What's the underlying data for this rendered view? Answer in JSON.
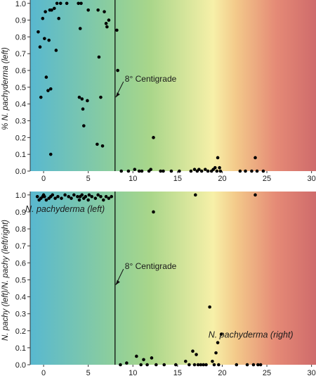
{
  "colors": {
    "gradient_stops": [
      "#58b8d0",
      "#8fcf9a",
      "#a9d68a",
      "#f7f0a8",
      "#f3c98a",
      "#e58a76",
      "#cf6b6b"
    ],
    "marker": "#000000",
    "threshold_line": "#000000"
  },
  "chart_data": [
    {
      "type": "scatter",
      "title": "",
      "xlabel": "",
      "ylabel": "% N. pachyderma (left)",
      "xlim": [
        -1.5,
        30.5
      ],
      "ylim": [
        0,
        1.02
      ],
      "xticks": [
        "0",
        "5",
        "10",
        "15",
        "20",
        "25",
        "30"
      ],
      "yticks": [
        "0.0",
        "0.1",
        "0.2",
        "0.3",
        "0.4",
        "0.5",
        "0.6",
        "0.7",
        "0.8",
        "0.9",
        "1.0"
      ],
      "grid": false,
      "threshold": {
        "x": 8,
        "label": "8° Centigrade",
        "label_x": 10.2,
        "label_y": 0.55,
        "arrow_to_y": 0.44
      },
      "points": [
        [
          -0.6,
          0.83
        ],
        [
          -0.4,
          0.74
        ],
        [
          -0.3,
          0.44
        ],
        [
          -0.1,
          0.91
        ],
        [
          0.1,
          0.79
        ],
        [
          0.2,
          0.95
        ],
        [
          0.3,
          0.56
        ],
        [
          0.5,
          0.48
        ],
        [
          0.6,
          0.78
        ],
        [
          0.7,
          0.96
        ],
        [
          0.8,
          0.1
        ],
        [
          0.8,
          0.49
        ],
        [
          0.9,
          0.96
        ],
        [
          1.2,
          0.97
        ],
        [
          1.4,
          0.72
        ],
        [
          1.5,
          1.0
        ],
        [
          1.7,
          0.91
        ],
        [
          1.9,
          1.0
        ],
        [
          2.6,
          1.0
        ],
        [
          3.9,
          1.0
        ],
        [
          4.0,
          0.44
        ],
        [
          4.1,
          0.85
        ],
        [
          4.2,
          1.0
        ],
        [
          4.3,
          0.43
        ],
        [
          4.4,
          0.37
        ],
        [
          4.5,
          0.27
        ],
        [
          4.9,
          0.42
        ],
        [
          5.0,
          0.96
        ],
        [
          6.0,
          0.16
        ],
        [
          6.1,
          0.96
        ],
        [
          6.2,
          0.68
        ],
        [
          6.4,
          0.44
        ],
        [
          6.6,
          0.15
        ],
        [
          6.8,
          0.95
        ],
        [
          7.0,
          0.88
        ],
        [
          7.1,
          0.86
        ],
        [
          7.3,
          0.9
        ],
        [
          8.2,
          0.84
        ],
        [
          8.3,
          0.6
        ],
        [
          8.7,
          0.0
        ],
        [
          9.5,
          0.0
        ],
        [
          10.2,
          0.01
        ],
        [
          10.7,
          0.0
        ],
        [
          11.0,
          0.0
        ],
        [
          11.8,
          0.0
        ],
        [
          12.0,
          0.01
        ],
        [
          12.3,
          0.2
        ],
        [
          13.1,
          0.0
        ],
        [
          13.4,
          0.0
        ],
        [
          14.3,
          0.0
        ],
        [
          15.2,
          0.0
        ],
        [
          16.5,
          0.0
        ],
        [
          16.9,
          0.01
        ],
        [
          17.2,
          0.0
        ],
        [
          17.4,
          0.01
        ],
        [
          17.7,
          0.0
        ],
        [
          18.1,
          0.01
        ],
        [
          18.4,
          0.0
        ],
        [
          18.8,
          0.0
        ],
        [
          19.0,
          0.01
        ],
        [
          19.2,
          0.02
        ],
        [
          19.4,
          0.0
        ],
        [
          19.5,
          0.08
        ],
        [
          19.7,
          0.02
        ],
        [
          19.8,
          0.0
        ],
        [
          22.0,
          0.0
        ],
        [
          22.6,
          0.0
        ],
        [
          23.3,
          0.0
        ],
        [
          23.7,
          0.08
        ],
        [
          23.9,
          0.0
        ],
        [
          24.6,
          0.0
        ]
      ]
    },
    {
      "type": "scatter",
      "title": "",
      "xlabel": "",
      "ylabel": "N. pachy (left)/N. pachy (left/right)",
      "xlim": [
        -1.5,
        30.5
      ],
      "ylim": [
        0,
        1.02
      ],
      "xticks": [
        "0",
        "5",
        "10",
        "15",
        "20",
        "25",
        "30"
      ],
      "yticks": [
        "0.0",
        "0.1",
        "0.2",
        "0.3",
        "0.4",
        "0.5",
        "0.6",
        "0.7",
        "0.8",
        "0.9",
        "1.0"
      ],
      "grid": false,
      "threshold": {
        "x": 8,
        "label": "8° Centigrade",
        "label_x": 10.2,
        "label_y": 0.58,
        "arrow_to_y": 0.47
      },
      "annotations": [
        {
          "text": "N. pachyderma (left)",
          "x": 2.4,
          "y": 0.9
        },
        {
          "text": "N. pachyderma (right)",
          "x": 23.2,
          "y": 0.16
        }
      ],
      "points": [
        [
          -0.7,
          0.99
        ],
        [
          -0.5,
          0.97
        ],
        [
          -0.3,
          0.98
        ],
        [
          -0.1,
          0.99
        ],
        [
          0.0,
          1.0
        ],
        [
          0.1,
          0.99
        ],
        [
          0.3,
          0.97
        ],
        [
          0.6,
          0.98
        ],
        [
          0.8,
          0.99
        ],
        [
          1.0,
          1.0
        ],
        [
          1.3,
          0.98
        ],
        [
          1.6,
          0.99
        ],
        [
          2.0,
          0.98
        ],
        [
          2.4,
          1.0
        ],
        [
          2.8,
          0.99
        ],
        [
          3.1,
          0.98
        ],
        [
          3.4,
          1.0
        ],
        [
          3.8,
          0.99
        ],
        [
          4.0,
          0.97
        ],
        [
          4.1,
          0.99
        ],
        [
          4.3,
          1.0
        ],
        [
          4.5,
          0.98
        ],
        [
          4.7,
          0.99
        ],
        [
          5.0,
          0.97
        ],
        [
          5.1,
          1.0
        ],
        [
          5.4,
          0.99
        ],
        [
          5.8,
          0.98
        ],
        [
          6.1,
          1.0
        ],
        [
          6.4,
          0.99
        ],
        [
          6.7,
          0.97
        ],
        [
          7.0,
          0.99
        ],
        [
          7.3,
          0.98
        ],
        [
          7.6,
          0.99
        ],
        [
          8.6,
          0.0
        ],
        [
          9.3,
          0.01
        ],
        [
          10.4,
          0.05
        ],
        [
          10.9,
          0.0
        ],
        [
          11.2,
          0.03
        ],
        [
          11.6,
          0.0
        ],
        [
          12.1,
          0.04
        ],
        [
          12.3,
          0.9
        ],
        [
          12.6,
          0.0
        ],
        [
          13.5,
          0.0
        ],
        [
          14.8,
          0.0
        ],
        [
          15.9,
          0.02
        ],
        [
          16.3,
          0.0
        ],
        [
          16.7,
          0.08
        ],
        [
          16.9,
          0.0
        ],
        [
          17.0,
          1.0
        ],
        [
          17.1,
          0.06
        ],
        [
          17.3,
          0.0
        ],
        [
          17.6,
          0.0
        ],
        [
          17.9,
          0.0
        ],
        [
          18.2,
          0.0
        ],
        [
          18.6,
          0.34
        ],
        [
          18.9,
          0.02
        ],
        [
          19.1,
          0.0
        ],
        [
          19.3,
          0.07
        ],
        [
          19.5,
          0.13
        ],
        [
          19.6,
          0.0
        ],
        [
          19.9,
          0.18
        ],
        [
          21.6,
          0.0
        ],
        [
          22.8,
          0.0
        ],
        [
          23.5,
          0.0
        ],
        [
          23.7,
          1.0
        ],
        [
          24.0,
          0.0
        ],
        [
          24.3,
          0.0
        ]
      ]
    }
  ]
}
